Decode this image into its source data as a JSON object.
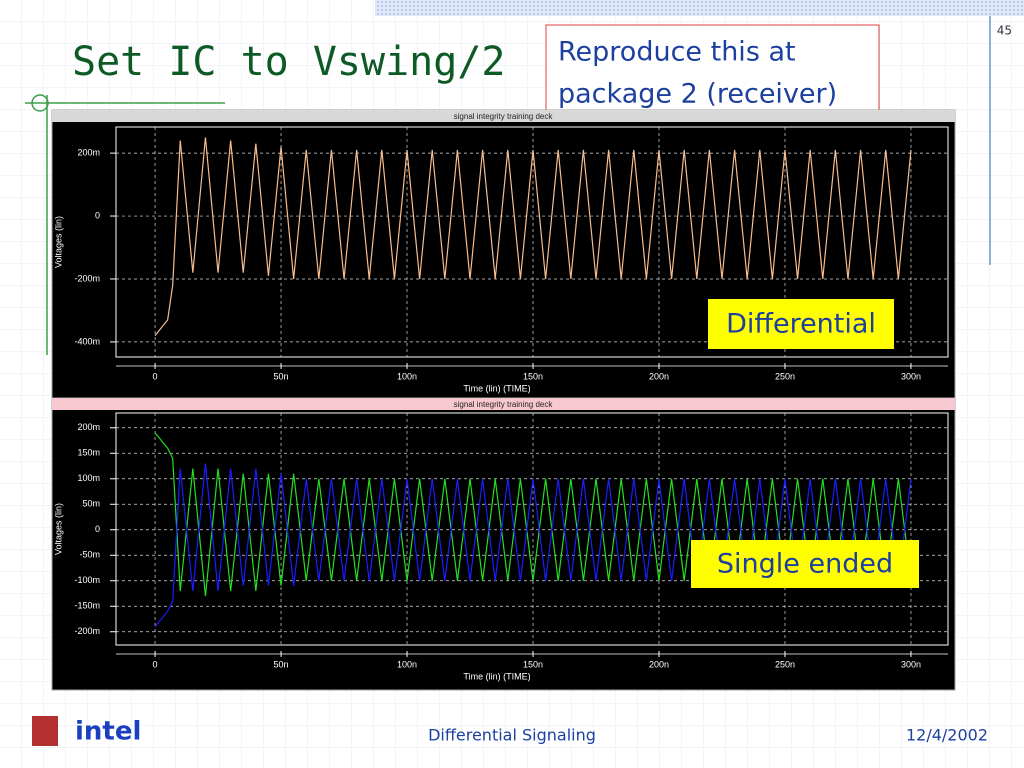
{
  "slide": {
    "title": "Set IC to Vswing/2",
    "note": [
      "Reproduce this at",
      "package 2 (receiver)"
    ],
    "page_number": "45",
    "logo": "intel",
    "footer": "Differential Signaling",
    "date": "12/4/2002"
  },
  "chart_data": [
    {
      "type": "line",
      "title": "signal integrity training deck",
      "annotation": "Differential",
      "x_label": "Time (lin) (TIME)",
      "y_label": "Voltages (lin)",
      "x": [
        0,
        5,
        7,
        10,
        15,
        20,
        25,
        30,
        35,
        40,
        45,
        50,
        55,
        60,
        65,
        70,
        75,
        80,
        85,
        90,
        95,
        100,
        105,
        110,
        115,
        120,
        125,
        130,
        135,
        140,
        145,
        150,
        155,
        160,
        165,
        170,
        175,
        180,
        185,
        190,
        195,
        200,
        205,
        210,
        215,
        220,
        225,
        230,
        235,
        240,
        245,
        250,
        255,
        260,
        265,
        270,
        275,
        280,
        285,
        290,
        295,
        300
      ],
      "series": [
        {
          "color": "#f7bd8f",
          "values": [
            -0.38,
            -0.33,
            -0.22,
            0.24,
            -0.18,
            0.25,
            -0.18,
            0.24,
            -0.18,
            0.23,
            -0.19,
            0.22,
            -0.2,
            0.21,
            -0.2,
            0.21,
            -0.2,
            0.21,
            -0.2,
            0.21,
            -0.2,
            0.21,
            -0.2,
            0.21,
            -0.2,
            0.21,
            -0.2,
            0.21,
            -0.2,
            0.21,
            -0.2,
            0.21,
            -0.2,
            0.21,
            -0.2,
            0.21,
            -0.2,
            0.21,
            -0.2,
            0.21,
            -0.2,
            0.21,
            -0.2,
            0.21,
            -0.2,
            0.21,
            -0.2,
            0.21,
            -0.2,
            0.21,
            -0.2,
            0.21,
            -0.2,
            0.21,
            -0.2,
            0.21,
            -0.2,
            0.21,
            -0.2,
            0.21,
            -0.2,
            0.21
          ]
        }
      ],
      "xlim": [
        -15.5,
        314.7
      ],
      "xticks": [
        0,
        {
          "value": 50,
          "label": "50n"
        },
        {
          "value": 100,
          "label": "100n"
        },
        {
          "value": 150,
          "label": "150n"
        },
        {
          "value": 200,
          "label": "200n"
        },
        {
          "value": 250,
          "label": "250n"
        },
        {
          "value": 300,
          "label": "300n"
        }
      ],
      "ylim": [
        -0.448,
        0.283
      ],
      "yticks": [
        {
          "value": 0.2,
          "label": "200m"
        },
        0,
        {
          "value": -0.2,
          "label": "-200m"
        },
        {
          "value": -0.4,
          "label": "-400m"
        }
      ],
      "grid": true
    },
    {
      "type": "line",
      "title": "signal integrity training deck",
      "annotation": "Single ended",
      "x_label": "Time (lin) (TIME)",
      "y_label": "Voltages (lin)",
      "x": [
        0,
        5,
        7,
        10,
        15,
        20,
        25,
        30,
        35,
        40,
        45,
        50,
        55,
        60,
        65,
        70,
        75,
        80,
        85,
        90,
        95,
        100,
        105,
        110,
        115,
        120,
        125,
        130,
        135,
        140,
        145,
        150,
        155,
        160,
        165,
        170,
        175,
        180,
        185,
        190,
        195,
        200,
        205,
        210,
        215,
        220,
        225,
        230,
        235,
        240,
        245,
        250,
        255,
        260,
        265,
        270,
        275,
        280,
        285,
        290,
        295,
        300
      ],
      "series": [
        {
          "color": "#22e022",
          "values": [
            0.19,
            0.16,
            0.14,
            -0.12,
            0.12,
            -0.13,
            0.12,
            -0.12,
            0.11,
            -0.12,
            0.11,
            -0.11,
            0.11,
            -0.1,
            0.1,
            -0.1,
            0.1,
            -0.1,
            0.1,
            -0.1,
            0.1,
            -0.1,
            0.1,
            -0.1,
            0.1,
            -0.1,
            0.1,
            -0.1,
            0.1,
            -0.1,
            0.1,
            -0.1,
            0.1,
            -0.1,
            0.1,
            -0.1,
            0.1,
            -0.1,
            0.1,
            -0.1,
            0.1,
            -0.1,
            0.1,
            -0.1,
            0.1,
            -0.1,
            0.1,
            -0.1,
            0.1,
            -0.1,
            0.1,
            -0.1,
            0.1,
            -0.1,
            0.1,
            -0.1,
            0.1,
            -0.1,
            0.1,
            -0.1,
            0.1,
            -0.1
          ]
        },
        {
          "color": "#1c1cff",
          "values": [
            -0.19,
            -0.16,
            -0.14,
            0.12,
            -0.12,
            0.13,
            -0.12,
            0.12,
            -0.11,
            0.12,
            -0.11,
            0.11,
            -0.11,
            0.1,
            -0.1,
            0.1,
            -0.1,
            0.1,
            -0.1,
            0.1,
            -0.1,
            0.1,
            -0.1,
            0.1,
            -0.1,
            0.1,
            -0.1,
            0.1,
            -0.1,
            0.1,
            -0.1,
            0.1,
            -0.1,
            0.1,
            -0.1,
            0.1,
            -0.1,
            0.1,
            -0.1,
            0.1,
            -0.1,
            0.1,
            -0.1,
            0.1,
            -0.1,
            0.1,
            -0.1,
            0.1,
            -0.1,
            0.1,
            -0.1,
            0.1,
            -0.1,
            0.1,
            -0.1,
            0.1,
            -0.1,
            0.1,
            -0.1,
            0.1,
            -0.1,
            0.1
          ]
        }
      ],
      "xlim": [
        -15.5,
        314.7
      ],
      "xticks": [
        0,
        {
          "value": 50,
          "label": "50n"
        },
        {
          "value": 100,
          "label": "100n"
        },
        {
          "value": 150,
          "label": "150n"
        },
        {
          "value": 200,
          "label": "200n"
        },
        {
          "value": 250,
          "label": "250n"
        },
        {
          "value": 300,
          "label": "300n"
        }
      ],
      "ylim": [
        -0.226,
        0.229
      ],
      "yticks": [
        {
          "value": 0.2,
          "label": "200m"
        },
        {
          "value": 0.15,
          "label": "150m"
        },
        {
          "value": 0.1,
          "label": "100m"
        },
        {
          "value": 0.05,
          "label": "50m"
        },
        0,
        {
          "value": -0.05,
          "label": "-50m"
        },
        {
          "value": -0.1,
          "label": "-100m"
        },
        {
          "value": -0.15,
          "label": "-150m"
        },
        {
          "value": -0.2,
          "label": "-200m"
        }
      ],
      "grid": true
    }
  ]
}
